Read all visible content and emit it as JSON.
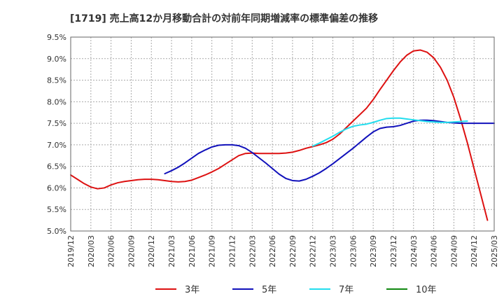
{
  "chart_data": {
    "type": "line",
    "title": "[1719]  売上高12か月移動合計の対前年同期増減率の標準偏差の推移",
    "xlabel": "",
    "ylabel": "",
    "x_ticks": [
      "2019/12",
      "2020/03",
      "2020/06",
      "2020/09",
      "2020/12",
      "2021/03",
      "2021/06",
      "2021/09",
      "2021/12",
      "2022/03",
      "2022/06",
      "2022/09",
      "2022/12",
      "2023/03",
      "2023/06",
      "2023/09",
      "2023/12",
      "2024/03",
      "2024/06",
      "2024/09",
      "2024/12",
      "2025/03"
    ],
    "y_ticks": [
      "5.0%",
      "5.5%",
      "6.0%",
      "6.5%",
      "7.0%",
      "7.5%",
      "8.0%",
      "8.5%",
      "9.0%",
      "9.5%"
    ],
    "ylim": [
      5.0,
      9.5
    ],
    "grid": true,
    "legend_position": "bottom",
    "series": [
      {
        "name": "3年",
        "color": "#dd1111",
        "start": "2019/12",
        "values": [
          6.3,
          6.2,
          6.1,
          6.02,
          5.98,
          6.0,
          6.07,
          6.12,
          6.15,
          6.17,
          6.19,
          6.2,
          6.2,
          6.19,
          6.17,
          6.15,
          6.14,
          6.15,
          6.18,
          6.24,
          6.3,
          6.37,
          6.45,
          6.55,
          6.65,
          6.75,
          6.8,
          6.81,
          6.8,
          6.8,
          6.8,
          6.8,
          6.81,
          6.83,
          6.87,
          6.92,
          6.96,
          7.0,
          7.05,
          7.13,
          7.25,
          7.4,
          7.55,
          7.7,
          7.85,
          8.05,
          8.28,
          8.5,
          8.72,
          8.92,
          9.08,
          9.18,
          9.2,
          9.15,
          9.02,
          8.8,
          8.5,
          8.1,
          7.6,
          7.05,
          6.45,
          5.85,
          5.25
        ]
      },
      {
        "name": "5年",
        "color": "#1111bb",
        "start": "2021/02",
        "values": [
          6.33,
          6.4,
          6.48,
          6.58,
          6.69,
          6.8,
          6.88,
          6.95,
          6.99,
          7.0,
          7.0,
          6.98,
          6.92,
          6.82,
          6.7,
          6.58,
          6.45,
          6.32,
          6.22,
          6.17,
          6.16,
          6.2,
          6.27,
          6.35,
          6.45,
          6.56,
          6.68,
          6.8,
          6.92,
          7.05,
          7.18,
          7.3,
          7.38,
          7.41,
          7.42,
          7.45,
          7.5,
          7.55,
          7.57,
          7.57,
          7.56,
          7.54,
          7.52,
          7.51,
          7.5,
          7.5,
          7.5,
          7.5,
          7.5,
          7.5
        ]
      },
      {
        "name": "7年",
        "color": "#22ddee",
        "start": "2022/12",
        "values": [
          6.97,
          7.04,
          7.12,
          7.2,
          7.29,
          7.37,
          7.43,
          7.46,
          7.48,
          7.52,
          7.57,
          7.61,
          7.62,
          7.62,
          7.6,
          7.58,
          7.56,
          7.54,
          7.53,
          7.52,
          7.52,
          7.53,
          7.54,
          7.55
        ]
      },
      {
        "name": "10年",
        "color": "#118811",
        "start": "",
        "values": []
      }
    ]
  }
}
